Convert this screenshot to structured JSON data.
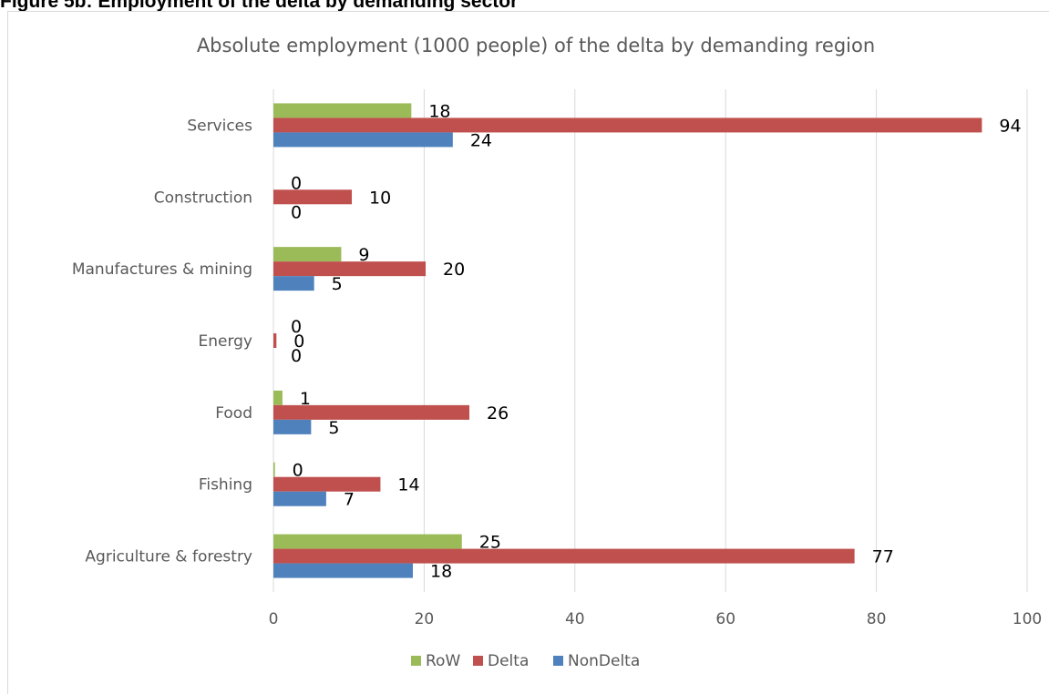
{
  "figure_title": "Figure 5b: Employment of the delta by demanding sector",
  "chart_data": {
    "type": "bar",
    "orientation": "horizontal",
    "title": "Absolute employment (1000 people) of the delta by  demanding region",
    "xlabel": "",
    "ylabel": "",
    "categories": [
      "Services",
      "Construction",
      "Manufactures & mining",
      "Energy",
      "Food",
      "Fishing",
      "Agriculture & forestry"
    ],
    "series": [
      {
        "name": "RoW",
        "color": "#9bbb59",
        "values": [
          18.3,
          0,
          9,
          0,
          1.2,
          0.2,
          25
        ],
        "labels": [
          "18",
          "0",
          "9",
          "0",
          "1",
          "0",
          "25"
        ]
      },
      {
        "name": "Delta",
        "color": "#c0504d",
        "values": [
          94,
          10.4,
          20.2,
          0.4,
          26,
          14.2,
          77.1
        ],
        "labels": [
          "94",
          "10",
          "20",
          "0",
          "26",
          "14",
          "77"
        ]
      },
      {
        "name": "NonDelta",
        "color": "#4f81bd",
        "values": [
          23.8,
          0,
          5.4,
          0,
          5,
          7,
          18.5
        ],
        "labels": [
          "24",
          "0",
          "5",
          "0",
          "5",
          "7",
          "18"
        ]
      }
    ],
    "xlim": [
      0,
      100
    ],
    "xticks": [
      "0",
      "20",
      "40",
      "60",
      "80",
      "100"
    ],
    "grid": true,
    "legend": "bottom"
  }
}
